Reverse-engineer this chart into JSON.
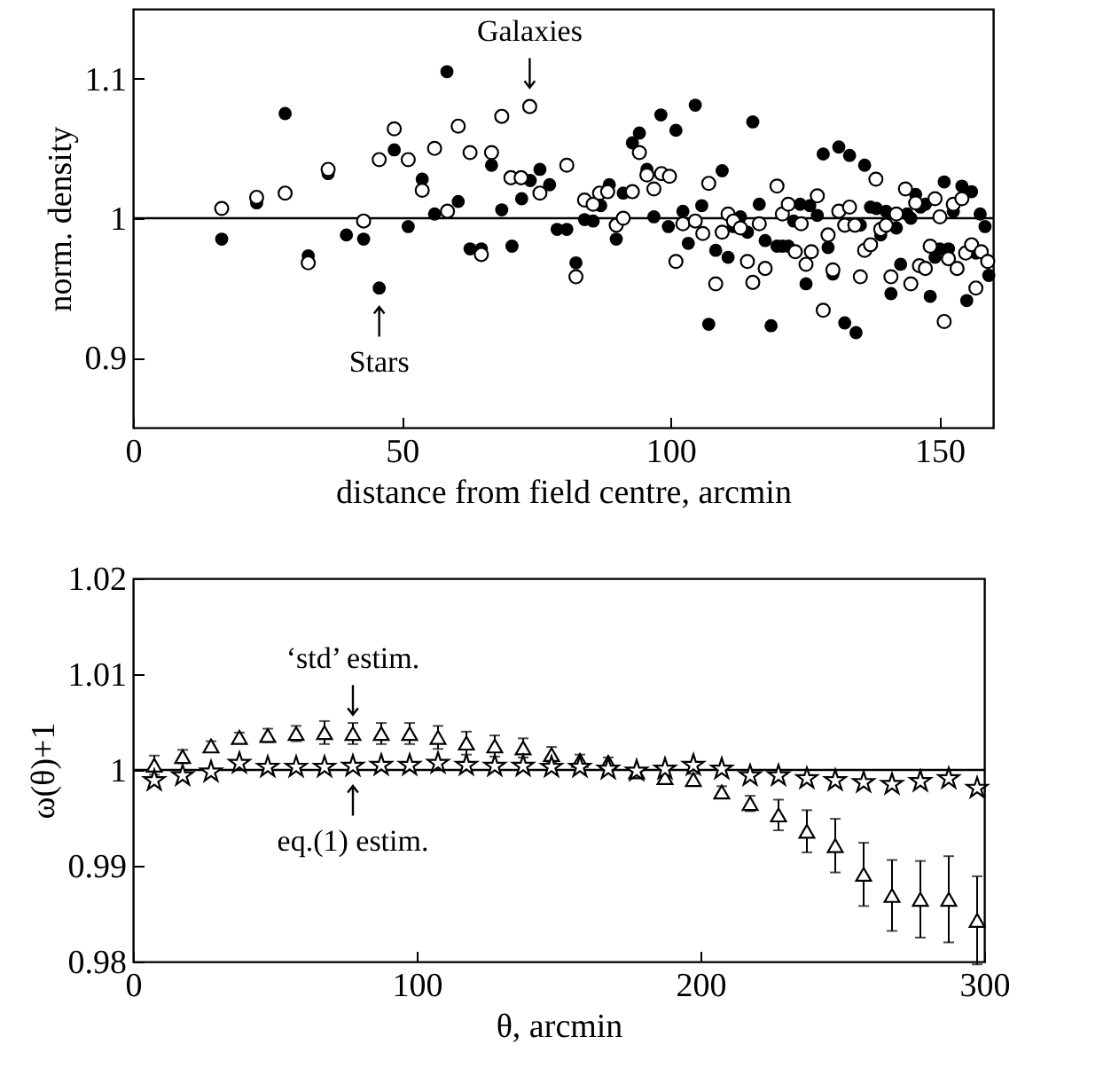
{
  "chart_data": [
    {
      "type": "scatter",
      "xlabel": "distance from field centre, arcmin",
      "ylabel": "norm. density",
      "xlim": [
        0,
        160
      ],
      "xticks": [
        0,
        50,
        100,
        150
      ],
      "ylim": [
        0.85,
        1.15
      ],
      "yticks": [
        0.9,
        1,
        1.1
      ],
      "ref_lines": [
        {
          "axis": "y",
          "value": 1
        }
      ],
      "annotations": [
        {
          "text": "Galaxies",
          "x": 73.8,
          "y": 1.08
        },
        {
          "text": "Stars",
          "x": 45.8,
          "y": 0.95
        }
      ],
      "series": [
        {
          "color": "#000000",
          "marker": "circle",
          "x": [
            16.5,
            23.0,
            28.3,
            32.6,
            36.3,
            39.7,
            42.9,
            45.8,
            48.6,
            51.2,
            53.8,
            56.1,
            58.4,
            60.5,
            62.7,
            64.8,
            66.7,
            68.6,
            70.5,
            72.3,
            73.9,
            75.7,
            77.5,
            78.9,
            80.7,
            82.4,
            84.0,
            85.6,
            87.0,
            88.6,
            89.9,
            91.2,
            92.9,
            94.2,
            95.6,
            96.9,
            98.2,
            99.6,
            101.0,
            102.3,
            103.3,
            104.6,
            105.8,
            107.1,
            108.4,
            109.6,
            110.7,
            111.7,
            113.0,
            114.3,
            115.3,
            116.5,
            117.6,
            118.7,
            119.8,
            120.8,
            121.9,
            122.9,
            124.1,
            125.2,
            125.9,
            127.3,
            128.4,
            129.3,
            130.2,
            131.3,
            132.4,
            133.3,
            134.5,
            135.3,
            136.1,
            137.2,
            138.3,
            139.1,
            140.1,
            141.0,
            142.0,
            142.8,
            144.0,
            144.7,
            145.6,
            146.5,
            147.4,
            148.3,
            149.2,
            150.1,
            150.9,
            151.7,
            152.6,
            154.2,
            155.1,
            156.0,
            156.8,
            157.6,
            158.5,
            159.2
          ],
          "values": [
            0.985,
            1.011,
            1.075,
            0.973,
            1.032,
            0.988,
            0.985,
            0.95,
            1.049,
            0.994,
            1.028,
            1.003,
            1.105,
            1.012,
            0.978,
            0.978,
            1.038,
            1.006,
            0.98,
            1.014,
            1.027,
            1.035,
            1.024,
            0.992,
            0.992,
            0.968,
            0.999,
            0.998,
            1.009,
            1.024,
            0.985,
            1.018,
            1.054,
            1.061,
            1.035,
            1.001,
            1.074,
            0.994,
            1.063,
            1.005,
            0.982,
            1.081,
            1.009,
            0.924,
            0.977,
            1.034,
            0.972,
            0.994,
            1.001,
            0.99,
            1.069,
            1.01,
            0.984,
            0.923,
            0.98,
            0.98,
            0.98,
            0.998,
            1.01,
            0.953,
            1.009,
            1.002,
            1.046,
            0.979,
            0.96,
            1.051,
            0.925,
            1.045,
            0.918,
            0.995,
            1.038,
            1.008,
            1.007,
            0.988,
            1.005,
            0.946,
            0.993,
            0.967,
            1.003,
            1.0,
            1.017,
            1.008,
            1.01,
            0.944,
            0.972,
            0.978,
            1.026,
            0.978,
            1.005,
            1.023,
            0.941,
            1.019,
            0.975,
            1.003,
            0.994,
            0.959
          ]
        },
        {
          "color": "#000000",
          "marker": "circle",
          "x": [
            16.5,
            23.0,
            28.3,
            32.6,
            36.3,
            42.9,
            45.8,
            48.6,
            51.2,
            53.8,
            56.1,
            58.5,
            60.5,
            62.7,
            64.8,
            66.7,
            68.6,
            70.3,
            72.2,
            73.8,
            75.7,
            80.7,
            82.4,
            84.0,
            85.6,
            86.8,
            88.3,
            89.9,
            91.2,
            92.9,
            94.2,
            95.6,
            96.9,
            98.3,
            99.8,
            101.0,
            102.3,
            104.6,
            106.0,
            107.1,
            108.4,
            109.6,
            110.7,
            111.7,
            113.0,
            114.3,
            115.3,
            116.5,
            117.6,
            119.8,
            120.8,
            121.9,
            123.2,
            124.3,
            125.2,
            126.2,
            127.3,
            128.4,
            129.3,
            130.2,
            131.3,
            132.4,
            133.3,
            134.3,
            135.3,
            136.1,
            137.2,
            138.2,
            139.1,
            140.1,
            141.0,
            142.0,
            143.7,
            144.7,
            145.6,
            146.3,
            147.4,
            148.3,
            149.2,
            150.1,
            150.9,
            151.7,
            152.6,
            153.3,
            154.2,
            154.9,
            156.0,
            156.8,
            157.8,
            159.0
          ],
          "values": [
            1.007,
            1.015,
            1.018,
            0.968,
            1.035,
            0.998,
            1.042,
            1.064,
            1.042,
            1.02,
            1.05,
            1.005,
            1.066,
            1.047,
            0.974,
            1.047,
            1.073,
            1.029,
            1.029,
            1.08,
            1.018,
            1.038,
            0.958,
            1.013,
            1.01,
            1.018,
            1.019,
            0.995,
            1.0,
            1.019,
            1.047,
            1.031,
            1.021,
            1.032,
            1.03,
            0.969,
            0.996,
            0.998,
            0.989,
            1.025,
            0.953,
            0.99,
            1.003,
            0.998,
            0.993,
            0.969,
            0.954,
            0.996,
            0.964,
            1.023,
            1.003,
            1.01,
            0.976,
            0.996,
            0.967,
            0.976,
            1.016,
            0.934,
            0.988,
            0.963,
            1.005,
            0.995,
            1.008,
            0.995,
            0.958,
            0.977,
            0.981,
            1.028,
            0.992,
            0.995,
            0.958,
            1.003,
            1.021,
            0.953,
            1.011,
            0.966,
            0.964,
            0.98,
            1.014,
            1.001,
            0.926,
            0.971,
            1.01,
            0.964,
            1.014,
            0.975,
            0.981,
            0.95,
            0.976,
            0.969
          ]
        }
      ]
    },
    {
      "type": "scatter",
      "xlabel": "θ, arcmin",
      "ylabel": "ω(θ)+1",
      "xlim": [
        0,
        300
      ],
      "xticks": [
        0,
        100,
        200,
        300
      ],
      "ylim": [
        0.98,
        1.02
      ],
      "yticks": [
        0.98,
        0.99,
        1,
        1.01,
        1.02
      ],
      "ref_lines": [
        {
          "axis": "y",
          "value": 1
        }
      ],
      "annotations": [
        {
          "text": "‘std’ estim.",
          "x": 77.5,
          "y": 1.0038
        },
        {
          "text": "eq.(1) estim.",
          "x": 77.5,
          "y": 1.0003
        }
      ],
      "x": [
        7.5,
        17.5,
        27.5,
        37.5,
        47.5,
        57.5,
        67.5,
        77.5,
        87.5,
        97.5,
        107.5,
        117.5,
        127.5,
        137.5,
        147.5,
        157.5,
        167.5,
        177.5,
        187.5,
        197.5,
        207.5,
        217.5,
        227.5,
        237.5,
        247.5,
        257.5,
        267.5,
        277.5,
        287.5,
        297.5
      ],
      "series": [
        {
          "color": "#000000",
          "marker": "triangle",
          "values": [
            1.0005,
            1.0014,
            1.0025,
            1.0034,
            1.0036,
            1.0038,
            1.0039,
            1.0038,
            1.0038,
            1.0038,
            1.0034,
            1.0028,
            1.0025,
            1.0023,
            1.0016,
            1.001,
            1.0008,
            0.9998,
            0.9992,
            0.999,
            0.9977,
            0.9965,
            0.9953,
            0.9936,
            0.9921,
            0.9891,
            0.9869,
            0.9865,
            0.9865,
            0.9843
          ],
          "errors": [
            0.001,
            0.0007,
            0.0005,
            0.0005,
            0.0007,
            0.0008,
            0.0012,
            0.0011,
            0.0011,
            0.0011,
            0.0012,
            0.0012,
            0.0011,
            0.001,
            0.0008,
            0.0006,
            0.0005,
            0.0004,
            0.0004,
            0.0006,
            0.0006,
            0.0008,
            0.0016,
            0.0022,
            0.0028,
            0.0033,
            0.0037,
            0.004,
            0.0045,
            0.0046
          ]
        },
        {
          "color": "#000000",
          "marker": "star",
          "values": [
            0.9989,
            0.9994,
            0.9998,
            1.0007,
            1.0003,
            1.0003,
            1.0003,
            1.0004,
            1.0005,
            1.0005,
            1.0007,
            1.0005,
            1.0004,
            1.0004,
            1.0003,
            1.0003,
            1.0001,
            0.9999,
            1.0001,
            1.0005,
            1.0001,
            0.9994,
            0.9994,
            0.9991,
            0.9989,
            0.9987,
            0.9985,
            0.9988,
            0.9991,
            0.9981
          ]
        }
      ]
    }
  ]
}
